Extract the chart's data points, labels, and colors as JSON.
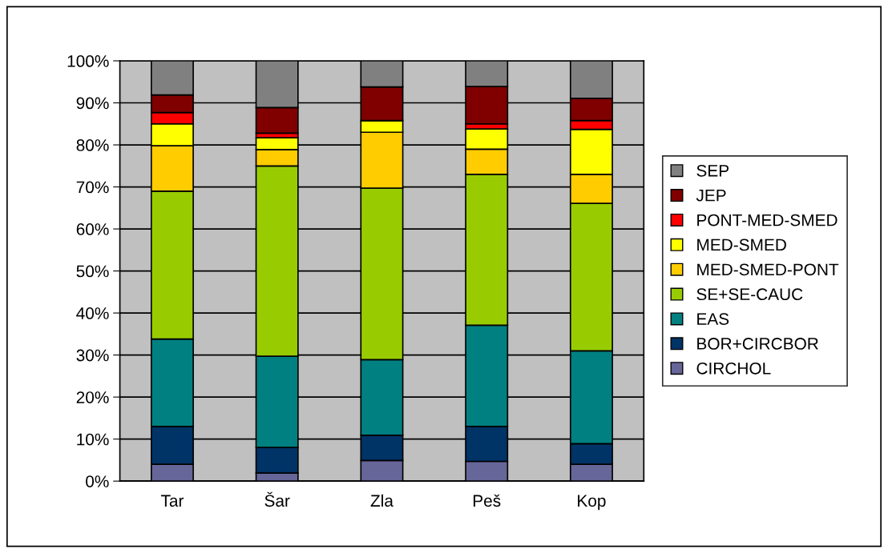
{
  "chart_data": {
    "type": "bar",
    "stacked": true,
    "categories": [
      "Tar",
      "Šar",
      "Zla",
      "Peš",
      "Kop"
    ],
    "series": [
      {
        "name": "CIRCHOL",
        "color": "#666699",
        "values": [
          4.0,
          1.9,
          4.9,
          4.7,
          4.0
        ]
      },
      {
        "name": "BOR+CIRCBOR",
        "color": "#003366",
        "values": [
          9.0,
          6.1,
          6.0,
          8.3,
          4.9
        ]
      },
      {
        "name": "EAS",
        "color": "#008080",
        "values": [
          20.8,
          21.7,
          18.0,
          24.1,
          22.1
        ]
      },
      {
        "name": "SE+SE-CAUC",
        "color": "#99cc00",
        "values": [
          35.2,
          45.3,
          40.8,
          35.9,
          35.1
        ]
      },
      {
        "name": "MED-SMED-PONT",
        "color": "#ffcc00",
        "values": [
          10.8,
          3.9,
          13.3,
          6.0,
          6.9
        ]
      },
      {
        "name": "MED-SMED",
        "color": "#ffff00",
        "values": [
          5.2,
          2.8,
          2.8,
          4.8,
          10.7
        ]
      },
      {
        "name": "PONT-MED-SMED",
        "color": "#ff0000",
        "values": [
          2.7,
          1.1,
          0,
          1.2,
          2.1
        ]
      },
      {
        "name": "JEP",
        "color": "#800000",
        "values": [
          4.2,
          6.1,
          8.0,
          8.9,
          5.3
        ]
      },
      {
        "name": "SEP",
        "color": "#808080",
        "values": [
          8.1,
          11.1,
          6.2,
          6.1,
          8.9
        ]
      }
    ],
    "ylim": [
      0,
      100
    ],
    "yticks": [
      {
        "value": 0,
        "label": "0%"
      },
      {
        "value": 10,
        "label": "10%"
      },
      {
        "value": 20,
        "label": "20%"
      },
      {
        "value": 30,
        "label": "30%"
      },
      {
        "value": 40,
        "label": "40%"
      },
      {
        "value": 50,
        "label": "50%"
      },
      {
        "value": 60,
        "label": "60%"
      },
      {
        "value": 70,
        "label": "70%"
      },
      {
        "value": 80,
        "label": "80%"
      },
      {
        "value": 90,
        "label": "90%"
      },
      {
        "value": 100,
        "label": "100%"
      }
    ],
    "grid": "y",
    "legend": "right"
  }
}
